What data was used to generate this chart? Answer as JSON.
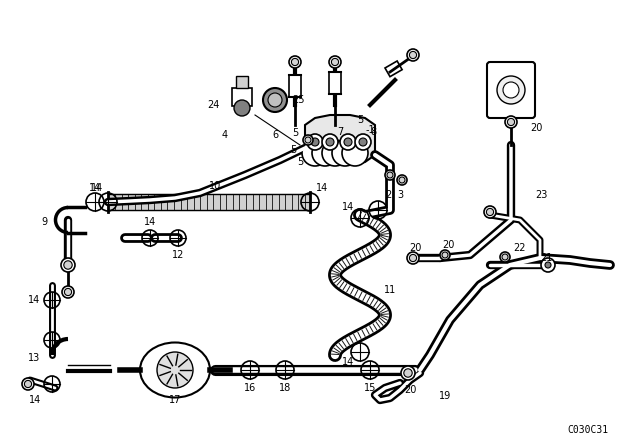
{
  "background_color": "#ffffff",
  "diagram_code": "C030C31",
  "fig_width": 6.4,
  "fig_height": 4.48,
  "dpi": 100
}
